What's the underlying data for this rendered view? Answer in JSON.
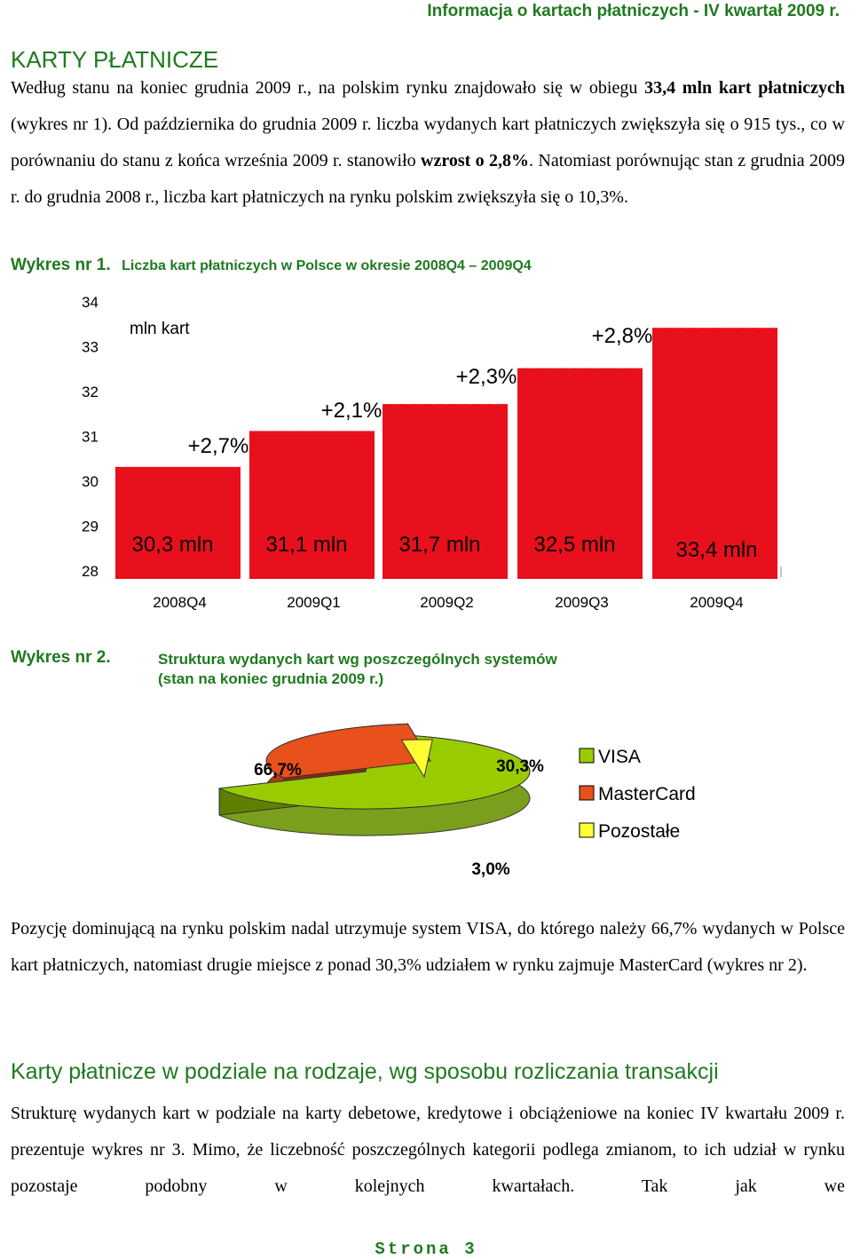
{
  "header": "Informacja o kartach płatniczych - IV kwartał 2009 r.",
  "section1": {
    "title": "KARTY PŁATNICZE",
    "para": [
      {
        "t": "Według stanu na koniec grudnia 2009 r., na polskim rynku znajdowało się w obiegu ",
        "b": false
      },
      {
        "t": "33,4 mln kart płatniczych",
        "b": true
      },
      {
        "t": " (wykres nr 1). Od października do grudnia 2009 r. liczba wydanych kart płatniczych zwiększyła się o 915 tys., co w porównaniu do stanu z końca września 2009 r. stanowiło ",
        "b": false
      },
      {
        "t": "wzrost o 2,8%",
        "b": true
      },
      {
        "t": ". Natomiast porównując stan z grudnia 2009 r. do grudnia 2008 r., liczba kart płatniczych na rynku polskim zwiększyła się o 10,3%.",
        "b": false
      }
    ]
  },
  "chart1": {
    "label": "Wykres nr 1.",
    "caption": "Liczba kart płatniczych w Polsce w okresie 2008Q4 – 2009Q4"
  },
  "chart2": {
    "label": "Wykres nr 2.",
    "caption_line1": "Struktura wydanych kart wg poszczególnych systemów",
    "caption_line2": "(stan na koniec grudnia 2009 r.)"
  },
  "chart_data": [
    {
      "type": "bar",
      "unit_label": "mln kart",
      "categories": [
        "2008Q4",
        "2009Q1",
        "2009Q2",
        "2009Q3",
        "2009Q4"
      ],
      "values": [
        30.3,
        31.1,
        31.7,
        32.5,
        33.4
      ],
      "value_labels": [
        "30,3 mln",
        "31,1 mln",
        "31,7 mln",
        "32,5 mln",
        "33,4 mln"
      ],
      "growth_labels": [
        "+2,7%",
        "+2,1%",
        "+2,3%",
        "+2,8%"
      ],
      "yticks": [
        "34",
        "33",
        "32",
        "31",
        "30",
        "29",
        "28"
      ],
      "ylim": [
        28,
        34
      ],
      "colors": {
        "bar": "#e8101c",
        "hatch_bg": "#e8101c",
        "hatch_fg": "#ffee10"
      }
    },
    {
      "type": "pie",
      "labels": [
        "VISA",
        "MasterCard",
        "Pozostałe"
      ],
      "values": [
        66.7,
        30.3,
        3.0
      ],
      "value_labels": [
        "66,7%",
        "30,3%",
        "3,0%"
      ],
      "legend": "right",
      "colors": [
        "#99cc00",
        "#e8501c",
        "#ffff33"
      ]
    }
  ],
  "para2": "Pozycję dominującą na rynku polskim nadal utrzymuje system VISA, do którego należy 66,7% wydanych w Polsce kart płatniczych, natomiast drugie miejsce z ponad 30,3% udziałem w rynku zajmuje MasterCard (wykres nr 2).",
  "section2": {
    "title": "Karty płatnicze w podziale na rodzaje, wg sposobu rozliczania transakcji",
    "para": "Strukturę wydanych kart w podziale na karty debetowe, kredytowe i obciążeniowe na koniec IV kwartału 2009 r. prezentuje wykres nr 3. Mimo, że liczebność poszczególnych kategorii podlega zmianom, to ich udział w rynku pozostaje podobny w kolejnych kwartałach. Tak jak we"
  },
  "footer": "Strona 3"
}
